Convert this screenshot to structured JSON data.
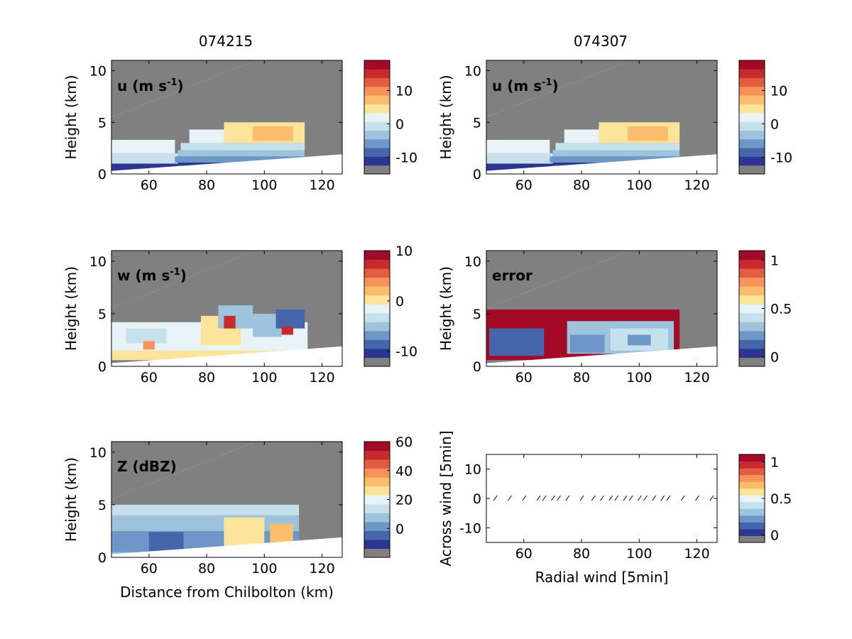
{
  "figure": {
    "column_titles": [
      "074215",
      "074307"
    ]
  },
  "chart_data": [
    {
      "type": "heatmap",
      "id": "u1",
      "label": "u (m s",
      "label_sup": "-1",
      "label_tail": ")",
      "ylabel": "Height (km)",
      "xlabel": "",
      "xlim": [
        47,
        127
      ],
      "ylim": [
        0,
        11
      ],
      "xticks": [
        60,
        80,
        100,
        120
      ],
      "yticks": [
        0,
        5,
        10
      ],
      "colorbar": {
        "range": [
          -15,
          19
        ],
        "ticks": [
          -10,
          0,
          10
        ]
      }
    },
    {
      "type": "heatmap",
      "id": "u2",
      "label": "u (m s",
      "label_sup": "-1",
      "label_tail": ")",
      "ylabel": "Height (km)",
      "xlabel": "",
      "xlim": [
        47,
        127
      ],
      "ylim": [
        0,
        11
      ],
      "xticks": [
        60,
        80,
        100,
        120
      ],
      "yticks": [
        0,
        5,
        10
      ],
      "colorbar": {
        "range": [
          -15,
          19
        ],
        "ticks": [
          -10,
          0,
          10
        ]
      }
    },
    {
      "type": "heatmap",
      "id": "w",
      "label": "w (m s",
      "label_sup": "-1",
      "label_tail": ")",
      "ylabel": "Height (km)",
      "xlabel": "",
      "xlim": [
        47,
        127
      ],
      "ylim": [
        0,
        11
      ],
      "xticks": [
        60,
        80,
        100,
        120
      ],
      "yticks": [
        0,
        5,
        10
      ],
      "colorbar": {
        "range": [
          -13,
          10
        ],
        "ticks": [
          -10,
          0,
          10
        ]
      }
    },
    {
      "type": "heatmap",
      "id": "err",
      "label": "error",
      "label_sup": "",
      "label_tail": "",
      "ylabel": "Height (km)",
      "xlabel": "",
      "xlim": [
        47,
        127
      ],
      "ylim": [
        0,
        11
      ],
      "xticks": [
        60,
        80,
        100,
        120
      ],
      "yticks": [
        0,
        5,
        10
      ],
      "colorbar": {
        "range": [
          -0.1,
          1.1
        ],
        "ticks": [
          0,
          0.5,
          1
        ]
      }
    },
    {
      "type": "heatmap",
      "id": "z",
      "label": "Z (dBZ)",
      "label_sup": "",
      "label_tail": "",
      "ylabel": "Height (km)",
      "xlabel": "Distance from Chilbolton (km)",
      "xlim": [
        47,
        127
      ],
      "ylim": [
        0,
        11
      ],
      "xticks": [
        60,
        80,
        100,
        120
      ],
      "yticks": [
        0,
        5,
        10
      ],
      "colorbar": {
        "range": [
          -20,
          60
        ],
        "ticks": [
          0,
          20,
          40,
          60
        ]
      }
    },
    {
      "type": "scatter",
      "id": "vec",
      "label": "",
      "label_sup": "",
      "label_tail": "",
      "ylabel": "Across wind [5min]",
      "xlabel": "Radial wind [5min]",
      "xlim": [
        47,
        127
      ],
      "ylim": [
        -15,
        15
      ],
      "xticks": [
        60,
        80,
        100,
        120
      ],
      "yticks": [
        -10,
        0,
        10
      ],
      "x": [
        50,
        55,
        60,
        65,
        67,
        70,
        72,
        75,
        80,
        84,
        87,
        90,
        92,
        95,
        97,
        100,
        102,
        105,
        108,
        110,
        115,
        120,
        125
      ],
      "y": [
        0,
        0,
        0,
        0,
        0,
        0,
        0,
        0,
        0,
        0,
        0,
        0,
        0,
        0,
        0,
        0,
        0,
        0,
        0,
        0,
        0,
        0,
        0
      ],
      "colorbar": {
        "range": [
          -0.1,
          1.1
        ],
        "ticks": [
          0,
          0.5,
          1
        ]
      }
    }
  ],
  "colors": {
    "missing": "#808080",
    "scale": [
      "#2c3591",
      "#4566ad",
      "#6d97c7",
      "#9ec3dd",
      "#c6e1ec",
      "#e7f3f6",
      "#fde49b",
      "#fcbe6d",
      "#f79358",
      "#e25d3f",
      "#c72b2d",
      "#a20a28"
    ]
  }
}
